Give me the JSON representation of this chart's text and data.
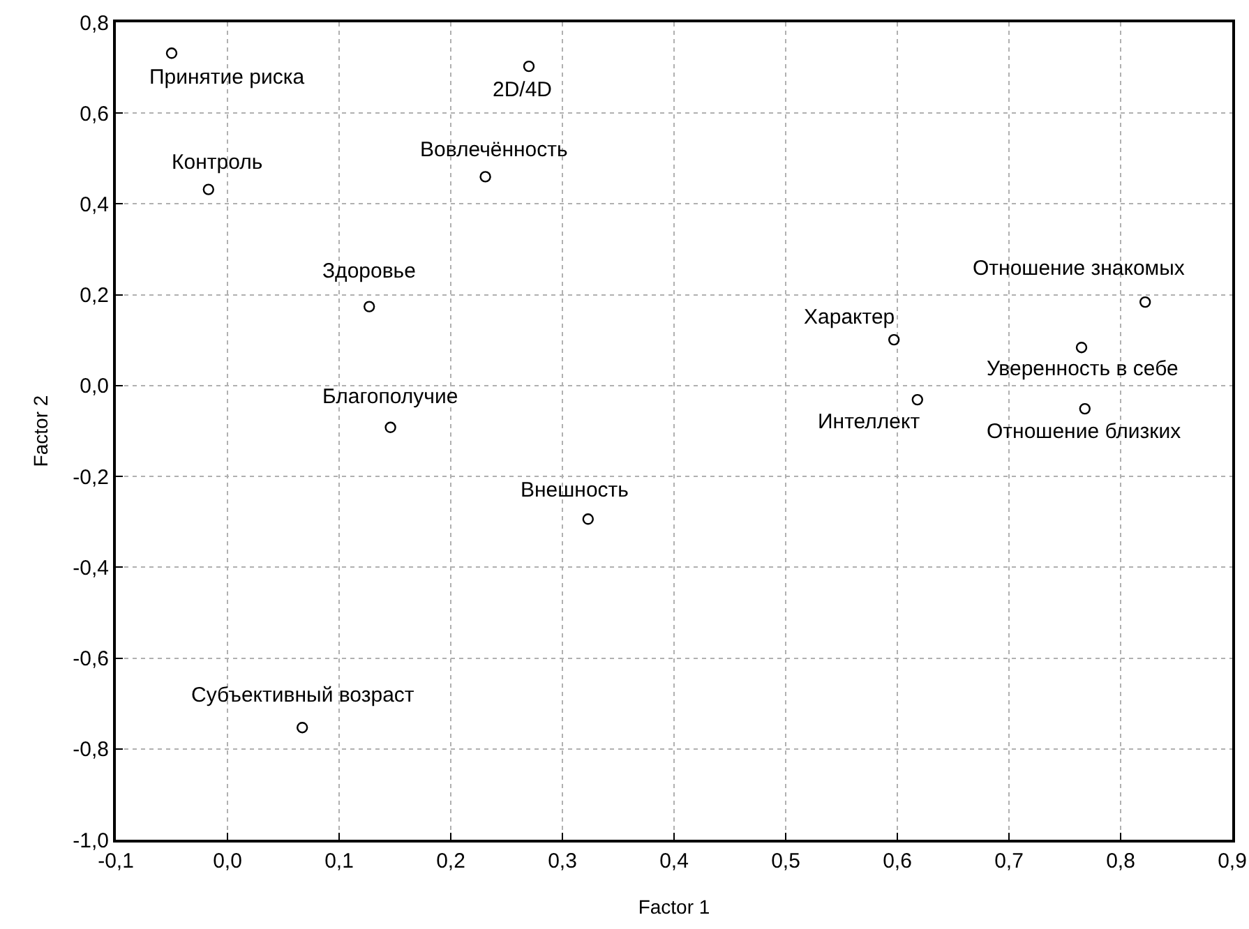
{
  "chart_data": {
    "type": "scatter",
    "xlabel": "Factor 1",
    "ylabel": "Factor 2",
    "x": [
      -0.05,
      0.27,
      0.231,
      -0.017,
      0.127,
      0.146,
      0.323,
      0.067,
      0.822,
      0.597,
      0.765,
      0.618,
      0.768
    ],
    "values": [
      0.732,
      0.703,
      0.46,
      0.432,
      0.174,
      -0.092,
      -0.294,
      -0.753,
      0.184,
      0.101,
      0.084,
      -0.031,
      -0.051
    ],
    "color": "#000000",
    "marker": "circle",
    "grid": true,
    "xlim": [
      -0.1,
      0.9
    ],
    "xticks": [
      {
        "value": -0.1,
        "label": "-0,1"
      },
      {
        "value": 0,
        "label": "0,0"
      },
      {
        "value": 0.1,
        "label": "0,1"
      },
      {
        "value": 0.2,
        "label": "0,2"
      },
      {
        "value": 0.3,
        "label": "0,3"
      },
      {
        "value": 0.4,
        "label": "0,4"
      },
      {
        "value": 0.5,
        "label": "0,5"
      },
      {
        "value": 0.6,
        "label": "0,6"
      },
      {
        "value": 0.7,
        "label": "0,7"
      },
      {
        "value": 0.8,
        "label": "0,8"
      },
      {
        "value": 0.9,
        "label": "0,9"
      }
    ],
    "ylim": [
      -1.0,
      0.8
    ],
    "yticks": [
      {
        "value": -1.0,
        "label": "-1,0"
      },
      {
        "value": -0.8,
        "label": "-0,8"
      },
      {
        "value": -0.6,
        "label": "-0,6"
      },
      {
        "value": -0.4,
        "label": "-0,4"
      },
      {
        "value": -0.2,
        "label": "-0,2"
      },
      {
        "value": 0,
        "label": "0,0"
      },
      {
        "value": 0.2,
        "label": "0,2"
      },
      {
        "value": 0.4,
        "label": "0,4"
      },
      {
        "value": 0.6,
        "label": "0,6"
      },
      {
        "value": 0.8,
        "label": "0,8"
      }
    ],
    "annotations": [
      {
        "text": "Принятие риска",
        "x": -0.05,
        "y": 0.732
      },
      {
        "text": "2D/4D",
        "x": 0.27,
        "y": 0.703
      },
      {
        "text": "Вовлечённость",
        "x": 0.231,
        "y": 0.46
      },
      {
        "text": "Контроль",
        "x": -0.017,
        "y": 0.432
      },
      {
        "text": "Здоровье",
        "x": 0.127,
        "y": 0.174
      },
      {
        "text": "Благополучие",
        "x": 0.146,
        "y": -0.092
      },
      {
        "text": "Внешность",
        "x": 0.323,
        "y": -0.294
      },
      {
        "text": "Субъективный возраст",
        "x": 0.067,
        "y": -0.753
      },
      {
        "text": "Отношение знакомых",
        "x": 0.822,
        "y": 0.184
      },
      {
        "text": "Характер",
        "x": 0.597,
        "y": 0.101
      },
      {
        "text": "Уверенность в себе",
        "x": 0.765,
        "y": 0.084
      },
      {
        "text": "Интеллект",
        "x": 0.618,
        "y": -0.031
      },
      {
        "text": "Отношение близких",
        "x": 0.768,
        "y": -0.051
      }
    ]
  }
}
